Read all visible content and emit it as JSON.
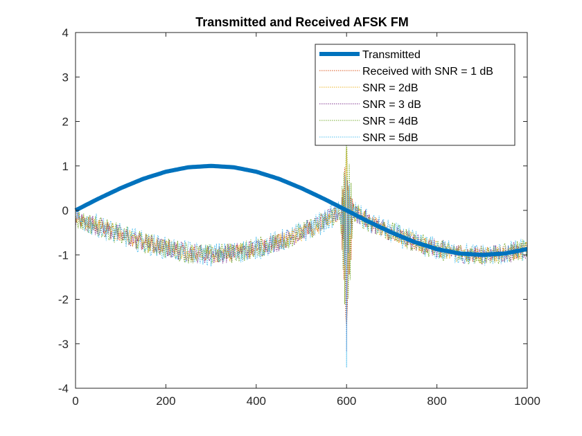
{
  "chart_data": {
    "type": "line",
    "title": "Transmitted and Received AFSK FM",
    "xlabel": "",
    "ylabel": "",
    "xlim": [
      0,
      1000
    ],
    "ylim": [
      -4,
      4
    ],
    "xticks": [
      0,
      200,
      400,
      600,
      800,
      1000
    ],
    "yticks": [
      -4,
      -3,
      -2,
      -1,
      0,
      1,
      2,
      3,
      4
    ],
    "grid": false,
    "legend_position": "top-right",
    "transmitted": {
      "name": "Transmitted",
      "color": "#0072BD",
      "x": [
        0,
        50,
        100,
        150,
        200,
        250,
        300,
        350,
        400,
        450,
        500,
        550,
        600,
        650,
        700,
        750,
        800,
        850,
        900,
        950,
        1000
      ],
      "values": [
        0.0,
        0.26,
        0.5,
        0.71,
        0.87,
        0.97,
        1.0,
        0.97,
        0.87,
        0.71,
        0.5,
        0.26,
        0.0,
        -0.26,
        -0.5,
        -0.71,
        -0.87,
        -0.97,
        -1.0,
        -0.97,
        -0.87
      ]
    },
    "received": {
      "x": [
        0,
        50,
        100,
        150,
        200,
        250,
        300,
        350,
        400,
        450,
        500,
        550,
        590,
        600,
        610,
        650,
        700,
        750,
        800,
        850,
        900,
        950,
        1000
      ],
      "values": [
        -0.2,
        -0.35,
        -0.55,
        -0.72,
        -0.85,
        -0.95,
        -1.0,
        -0.95,
        -0.85,
        -0.7,
        -0.5,
        -0.25,
        0.0,
        0.0,
        0.0,
        -0.26,
        -0.5,
        -0.71,
        -0.87,
        -0.97,
        -1.0,
        -0.97,
        -0.87
      ],
      "spike_x": 600,
      "spike_max": 1.6,
      "spike_min": -3.6,
      "series": [
        {
          "name": "Received with SNR = 1 dB",
          "color": "#D95319"
        },
        {
          "name": "SNR = 2dB",
          "color": "#EDB120"
        },
        {
          "name": "SNR = 3 dB",
          "color": "#7E2F8E"
        },
        {
          "name": "SNR = 4dB",
          "color": "#77AC30"
        },
        {
          "name": "SNR = 5dB",
          "color": "#4DBEEE"
        }
      ]
    }
  }
}
